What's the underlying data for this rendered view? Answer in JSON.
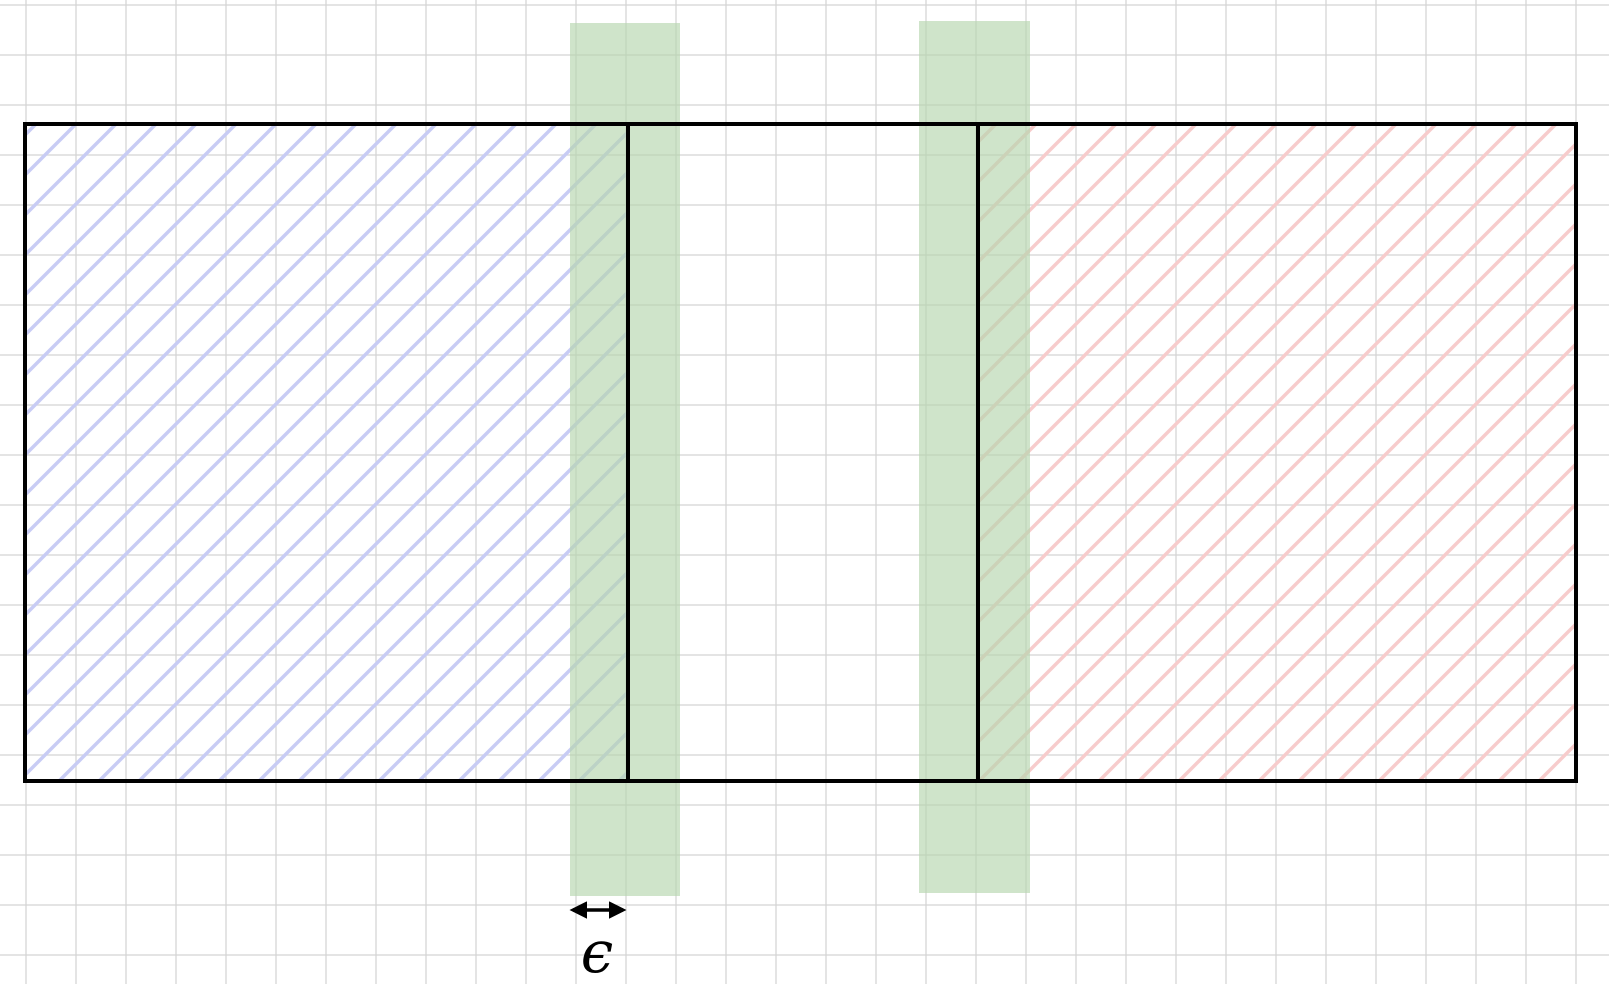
{
  "diagram": {
    "epsilon_label": "ϵ"
  },
  "colors": {
    "background": "#ffffff",
    "grid": "#d3d3d3",
    "outline": "#000000",
    "left_hatch": "#c8ccf4",
    "right_hatch": "#f7cccc",
    "bands": "#bcd9b7"
  }
}
